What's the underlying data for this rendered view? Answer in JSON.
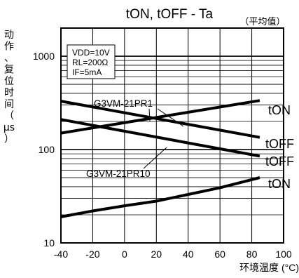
{
  "chart_data": {
    "type": "line",
    "title": "tON, tOFF - Ta",
    "subtitle": "（平均值）",
    "xlabel": "环境温度 (°C)",
    "ylabel": [
      "动",
      "作",
      "、",
      "复",
      "位",
      "时",
      "间",
      "（",
      "μs",
      "）"
    ],
    "x_ticks": [
      "-40",
      "-20",
      "0",
      "20",
      "40",
      "60",
      "80",
      "100"
    ],
    "y_ticks": [
      "10",
      "100",
      "1000"
    ],
    "xlim": [
      -40,
      100
    ],
    "ylim": [
      10,
      2000
    ],
    "y_scale": "log",
    "grid": true,
    "conditions": [
      "VDD=10V",
      "RL=200Ω",
      "IF=5mA"
    ],
    "annotations": [
      "G3VM-21PR1",
      "G3VM-21PR10"
    ],
    "series": [
      {
        "name": "tON",
        "x": [
          -40,
          85
        ],
        "y": [
          150,
          335
        ]
      },
      {
        "name": "tOFF",
        "x": [
          -40,
          85
        ],
        "y": [
          330,
          135
        ]
      },
      {
        "name": "tOFF",
        "x": [
          -40,
          85
        ],
        "y": [
          210,
          85
        ]
      },
      {
        "name": "tON",
        "x": [
          -40,
          -20,
          0,
          20,
          40,
          60,
          85
        ],
        "y": [
          19,
          22,
          25,
          28,
          33,
          39,
          50
        ]
      }
    ]
  }
}
